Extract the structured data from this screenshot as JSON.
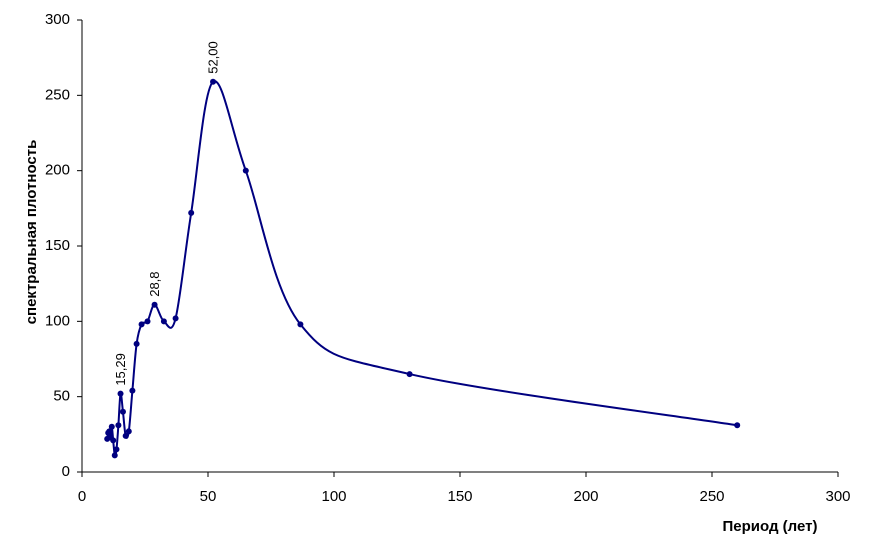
{
  "chart_data": {
    "type": "line",
    "x_label": "Период (лет)",
    "y_label": "спектральная плотность",
    "x": [
      10,
      10.4,
      10.83,
      11.3,
      11.82,
      12.38,
      13,
      13.68,
      14.44,
      15.29,
      16.25,
      17.33,
      18.57,
      20,
      21.67,
      23.64,
      26,
      28.8,
      32.5,
      37.14,
      43.33,
      52,
      65,
      86.67,
      130,
      260
    ],
    "values": [
      22,
      26,
      27,
      23,
      30,
      21,
      11,
      15,
      31,
      52,
      40,
      24,
      27,
      54,
      85,
      98,
      100,
      111,
      100,
      102,
      172,
      259,
      200,
      98,
      65,
      31
    ],
    "point_labels": [
      null,
      null,
      null,
      null,
      null,
      null,
      null,
      null,
      null,
      "15,29",
      null,
      null,
      null,
      null,
      null,
      null,
      null,
      "28,8",
      null,
      null,
      null,
      "52,00",
      null,
      null,
      null,
      null
    ],
    "color": "#000080",
    "xlim": [
      0,
      300
    ],
    "xticks": [
      0,
      50,
      100,
      150,
      200,
      250,
      300
    ],
    "ylim": [
      0,
      300
    ],
    "yticks": [
      0,
      50,
      100,
      150,
      200,
      250,
      300
    ],
    "grid": false
  }
}
